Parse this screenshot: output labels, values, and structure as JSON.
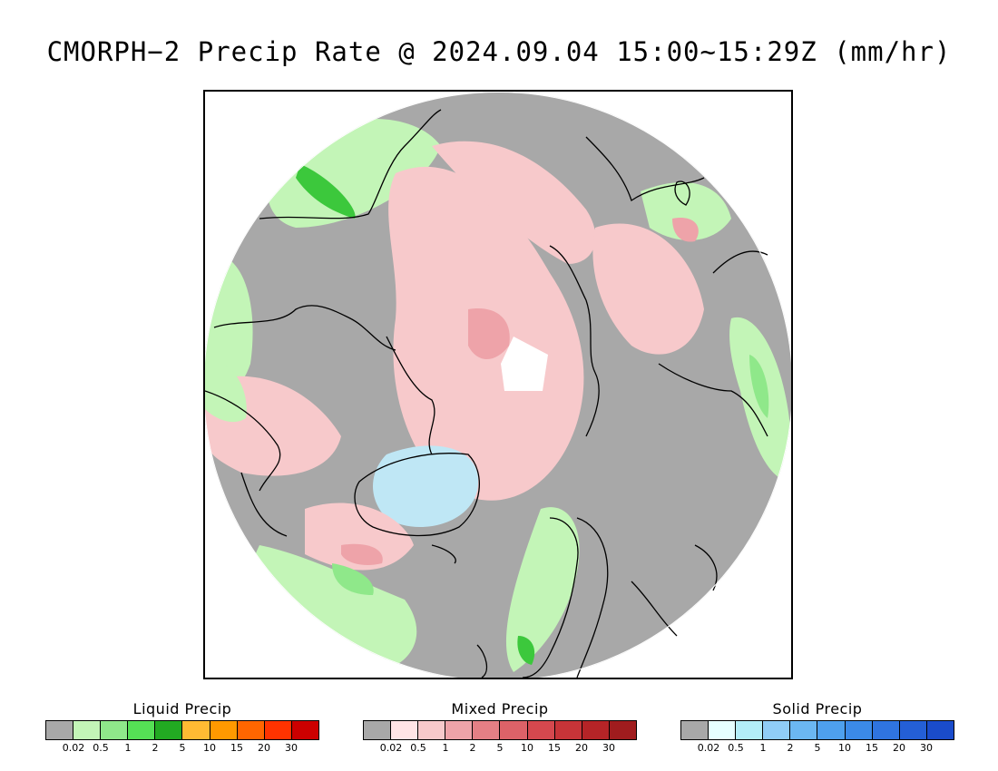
{
  "title": "CMORPH−2 Precip Rate @ 2024.09.04 15:00~15:29Z (mm/hr)",
  "map": {
    "projection": "north polar stereographic",
    "colors": {
      "no_precip": "#a8a8a8",
      "liquid_light": "#c3f5b7",
      "liquid_mid": "#8fe88a",
      "liquid_heavy": "#3cc83c",
      "mixed_light": "#f7c9cb",
      "mixed_mid": "#eea3a9",
      "solid_light": "#bfe7f5",
      "coast": "#000000",
      "pole_gap": "#ffffff"
    }
  },
  "legends": [
    {
      "title": "Liquid Precip",
      "colors": [
        "#a8a8a8",
        "#c3f5b7",
        "#8fe88a",
        "#55e055",
        "#22aa22",
        "#ffbb33",
        "#ff9900",
        "#ff6600",
        "#ff3300",
        "#cc0000"
      ],
      "ticks": [
        "0.02",
        "0.5",
        "1",
        "2",
        "5",
        "10",
        "15",
        "20",
        "30"
      ]
    },
    {
      "title": "Mixed Precip",
      "colors": [
        "#a8a8a8",
        "#ffe4e6",
        "#f7c9cb",
        "#eea3a9",
        "#e57f85",
        "#dd6268",
        "#d5484e",
        "#c73438",
        "#b52427",
        "#a01c1e"
      ],
      "ticks": [
        "0.02",
        "0.5",
        "1",
        "2",
        "5",
        "10",
        "15",
        "20",
        "30"
      ]
    },
    {
      "title": "Solid Precip",
      "colors": [
        "#a8a8a8",
        "#e6ffff",
        "#b3eef8",
        "#90cdf7",
        "#6bb7f2",
        "#4ea0ee",
        "#3b8ae8",
        "#2f74e0",
        "#245fd6",
        "#1a4ccb"
      ],
      "ticks": [
        "0.02",
        "0.5",
        "1",
        "2",
        "5",
        "10",
        "15",
        "20",
        "30"
      ]
    }
  ]
}
